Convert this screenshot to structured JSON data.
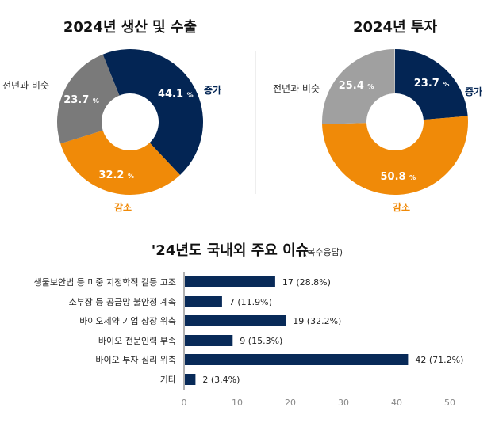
{
  "colors": {
    "increase": "#032554",
    "decrease": "#f08a08",
    "similar_left": "#7a7a7a",
    "similar_right": "#a0a0a0",
    "bar": "#082a58"
  },
  "chart_data": [
    {
      "type": "pie",
      "title": "2024년 생산 및 수출",
      "slices": [
        {
          "label": "증가",
          "value": 44.1
        },
        {
          "label": "감소",
          "value": 32.2
        },
        {
          "label": "전년과 비슷",
          "value": 23.7
        }
      ],
      "unit": "%"
    },
    {
      "type": "pie",
      "title": "2024년 투자",
      "slices": [
        {
          "label": "증가",
          "value": 23.7
        },
        {
          "label": "감소",
          "value": 50.8
        },
        {
          "label": "전년과 비슷",
          "value": 25.4
        }
      ],
      "unit": "%"
    },
    {
      "type": "bar",
      "orientation": "horizontal",
      "title": "'24년도 국내외 주요 이슈",
      "subtitle": "(복수응답)",
      "categories": [
        "생물보안법 등 미중 지정학적 갈등 고조",
        "소부장 등 공급망 불안정 계속",
        "바이오제약 기업 상장 위축",
        "바이오 전문인력 부족",
        "바이오 투자 심리 위축",
        "기타"
      ],
      "values": [
        17,
        7,
        19,
        9,
        42,
        2
      ],
      "data_labels": [
        "17 (28.8%)",
        "7 (11.9%)",
        "19 (32.2%)",
        "9 (15.3%)",
        "42 (71.2%)",
        "2 (3.4%)"
      ],
      "xlim": [
        0,
        50
      ],
      "xticks": [
        "0",
        "10",
        "20",
        "30",
        "40",
        "50"
      ],
      "grid": false
    }
  ]
}
